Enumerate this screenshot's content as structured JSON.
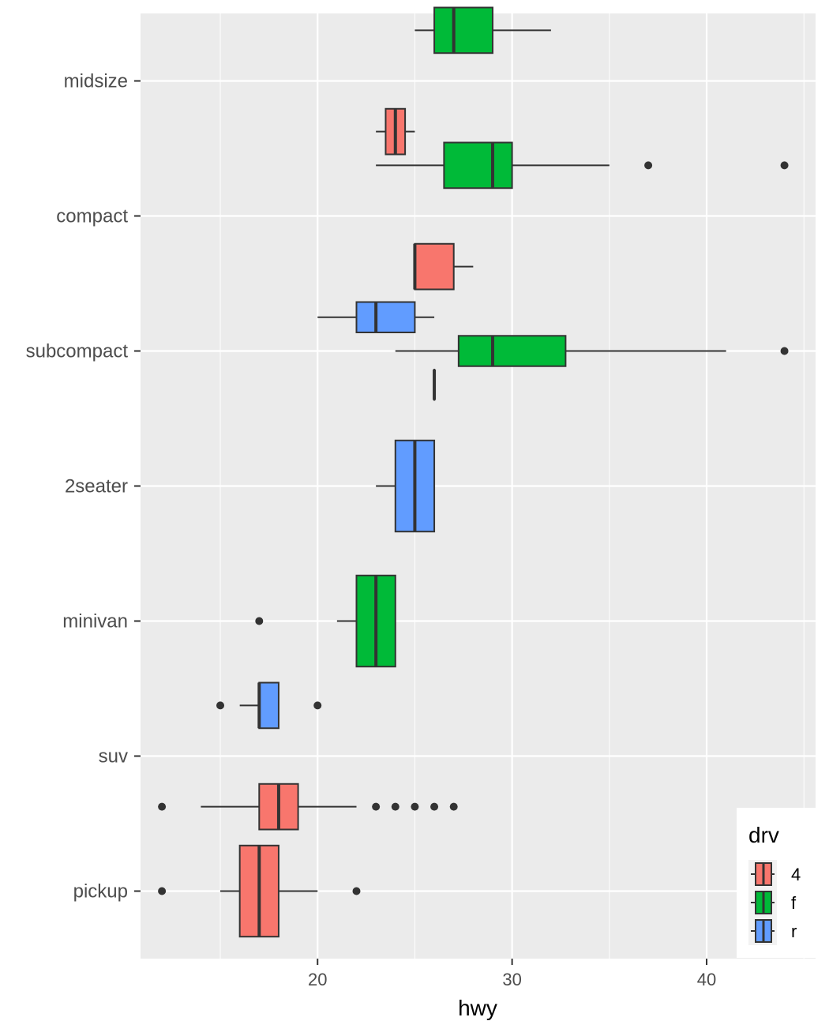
{
  "chart_data": {
    "type": "boxplot",
    "orientation": "horizontal",
    "xlabel": "hwy",
    "ylabel": "",
    "xlim": [
      10.9,
      45.6
    ],
    "xticks": [
      20,
      30,
      40
    ],
    "grid": true,
    "legend": {
      "title": "drv",
      "position": "bottom-right",
      "entries": [
        {
          "key": "4",
          "color": "#F8766D"
        },
        {
          "key": "f",
          "color": "#00BA38"
        },
        {
          "key": "r",
          "color": "#619CFF"
        }
      ]
    },
    "categories": [
      "pickup",
      "suv",
      "minivan",
      "2seater",
      "subcompact",
      "compact",
      "midsize"
    ],
    "boxes": [
      {
        "category": "midsize",
        "drv": "4",
        "slot": -1,
        "slots": 2,
        "whisker_low": 23,
        "q1": 23.5,
        "median": 24,
        "q3": 24.5,
        "whisker_high": 25,
        "outliers": []
      },
      {
        "category": "midsize",
        "drv": "f",
        "slot": 1,
        "slots": 2,
        "whisker_low": 25,
        "q1": 26,
        "median": 27,
        "q3": 29,
        "whisker_high": 32,
        "outliers": []
      },
      {
        "category": "compact",
        "drv": "4",
        "slot": -1,
        "slots": 2,
        "whisker_low": 25,
        "q1": 25,
        "median": 25,
        "q3": 27,
        "whisker_high": 28,
        "outliers": []
      },
      {
        "category": "compact",
        "drv": "f",
        "slot": 1,
        "slots": 2,
        "whisker_low": 23,
        "q1": 26.5,
        "median": 29,
        "q3": 30,
        "whisker_high": 35,
        "outliers": [
          37,
          44
        ]
      },
      {
        "category": "subcompact",
        "drv": "4",
        "slot": -1,
        "slots": 3,
        "whisker_low": 26,
        "q1": 26,
        "median": 26,
        "q3": 26,
        "whisker_high": 26,
        "outliers": []
      },
      {
        "category": "subcompact",
        "drv": "f",
        "slot": 0,
        "slots": 3,
        "whisker_low": 24,
        "q1": 27.25,
        "median": 29,
        "q3": 32.75,
        "whisker_high": 41,
        "outliers": [
          44
        ]
      },
      {
        "category": "subcompact",
        "drv": "r",
        "slot": 1,
        "slots": 3,
        "whisker_low": 20,
        "q1": 22,
        "median": 23,
        "q3": 25,
        "whisker_high": 26,
        "outliers": []
      },
      {
        "category": "2seater",
        "drv": "r",
        "slot": 0,
        "slots": 1,
        "whisker_low": 23,
        "q1": 24,
        "median": 25,
        "q3": 26,
        "whisker_high": 26,
        "outliers": []
      },
      {
        "category": "minivan",
        "drv": "f",
        "slot": 0,
        "slots": 1,
        "whisker_low": 21,
        "q1": 22,
        "median": 23,
        "q3": 24,
        "whisker_high": 24,
        "outliers": [
          17
        ]
      },
      {
        "category": "suv",
        "drv": "4",
        "slot": -1,
        "slots": 2,
        "whisker_low": 14,
        "q1": 17,
        "median": 18,
        "q3": 19,
        "whisker_high": 22,
        "outliers": [
          12,
          23,
          24,
          25,
          26,
          27
        ]
      },
      {
        "category": "suv",
        "drv": "r",
        "slot": 1,
        "slots": 2,
        "whisker_low": 16,
        "q1": 17,
        "median": 17,
        "q3": 18,
        "whisker_high": 18,
        "outliers": [
          15,
          20
        ]
      },
      {
        "category": "pickup",
        "drv": "4",
        "slot": 0,
        "slots": 1,
        "whisker_low": 15,
        "q1": 16,
        "median": 17,
        "q3": 18,
        "whisker_high": 20,
        "outliers": [
          12,
          22
        ]
      }
    ]
  }
}
